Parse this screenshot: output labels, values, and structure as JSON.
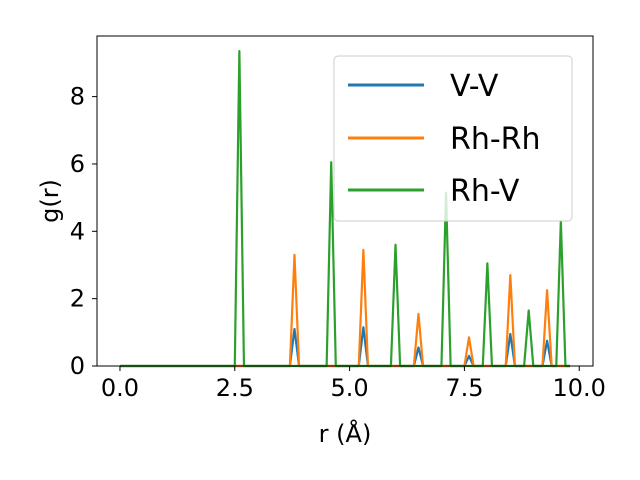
{
  "chart_data": {
    "type": "line",
    "title": "",
    "xlabel": "r (Å)",
    "ylabel": "g(r)",
    "xlim": [
      -0.5,
      10.3
    ],
    "ylim": [
      0,
      9.8
    ],
    "xticks": [
      0.0,
      2.5,
      5.0,
      7.5,
      10.0
    ],
    "xtick_labels": [
      "0.0",
      "2.5",
      "5.0",
      "7.5",
      "10.0"
    ],
    "yticks": [
      0,
      2,
      4,
      6,
      8
    ],
    "ytick_labels": [
      "0",
      "2",
      "4",
      "6",
      "8"
    ],
    "grid": false,
    "legend_position": "top-right",
    "series": [
      {
        "name": "V-V",
        "color": "#1f77b4",
        "peaks": [
          [
            3.8,
            1.1
          ],
          [
            5.3,
            1.15
          ],
          [
            6.5,
            0.55
          ],
          [
            7.6,
            0.3
          ],
          [
            8.5,
            0.95
          ],
          [
            9.3,
            0.75
          ]
        ]
      },
      {
        "name": "Rh-Rh",
        "color": "#ff7f0e",
        "peaks": [
          [
            3.8,
            3.3
          ],
          [
            5.3,
            3.45
          ],
          [
            6.5,
            1.55
          ],
          [
            7.6,
            0.85
          ],
          [
            8.5,
            2.7
          ],
          [
            9.3,
            2.25
          ]
        ]
      },
      {
        "name": "Rh-V",
        "color": "#2ca02c",
        "peaks": [
          [
            2.6,
            9.35
          ],
          [
            4.6,
            6.05
          ],
          [
            6.0,
            3.6
          ],
          [
            7.1,
            5.15
          ],
          [
            8.0,
            3.05
          ],
          [
            8.9,
            1.65
          ],
          [
            9.6,
            4.3
          ]
        ]
      }
    ]
  }
}
